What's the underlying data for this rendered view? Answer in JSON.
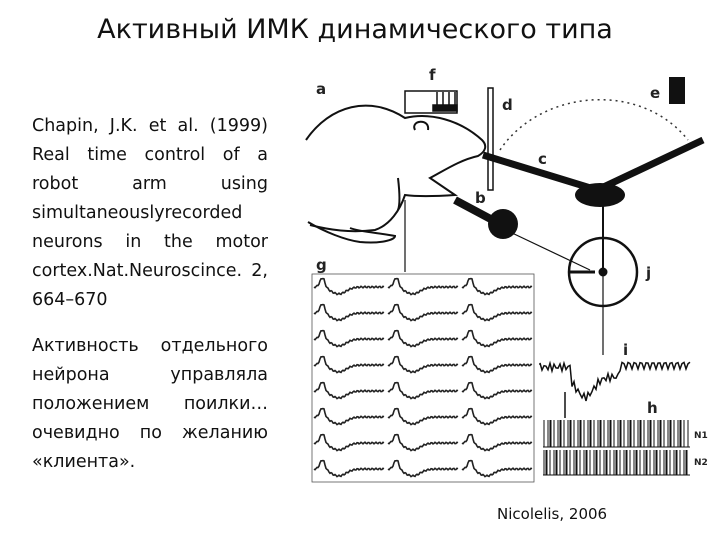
{
  "slide": {
    "title": "Активный ИМК динамического типа",
    "reference": "Chapin, J.K. et al. (1999) Real time control of a robot arm using simultaneouslyrecorded neurons in the motor cortex.Nat.Neuroscince. 2, 664–670",
    "comment": "Активность отдельного нейрона управляла положением поилки… очевидно по желанию «клиента».",
    "credit": "Nicolelis, 2006"
  },
  "figure": {
    "labels": {
      "a": "a",
      "b": "b",
      "c": "c",
      "d": "d",
      "e": "e",
      "f": "f",
      "g": "g",
      "h": "h",
      "i": "i",
      "j": "j",
      "n1": "N1",
      "n2": "N2"
    }
  }
}
